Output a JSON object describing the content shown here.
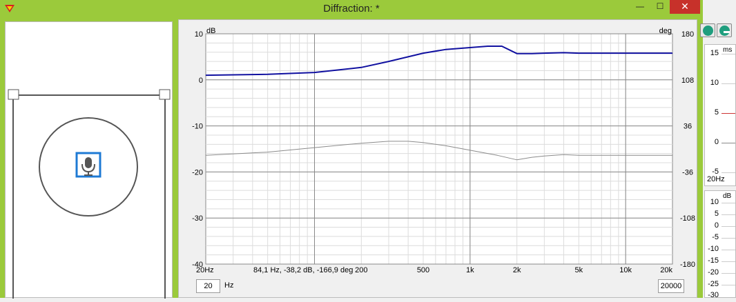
{
  "window": {
    "title": "Diffraction: *",
    "icons": {
      "app": "speaker-logo-icon",
      "minimize": "minimize-icon",
      "maximize": "maximize-icon",
      "close": "close-icon"
    },
    "min_glyph": "—",
    "max_glyph": "☐",
    "close_glyph": "✕"
  },
  "baffle": {
    "mic_icon": "microphone-icon",
    "selection_color": "#1e7ad4"
  },
  "plot": {
    "left_unit": "dB",
    "right_unit": "deg",
    "cursor_readout": "84,1 Hz, -38,2 dB, -166,9 deg",
    "freq_min_value": "20",
    "freq_unit": "Hz",
    "freq_max_value": "20000"
  },
  "chart_data": {
    "type": "line",
    "x_scale": "log",
    "xlim": [
      20,
      20000
    ],
    "x_ticks": [
      20,
      200,
      500,
      1000,
      2000,
      5000,
      10000,
      20000
    ],
    "x_tick_labels": [
      "20Hz",
      "200",
      "500",
      "1k",
      "2k",
      "5k",
      "10k",
      "20k"
    ],
    "ylim": [
      -40,
      10
    ],
    "y_ticks": [
      10,
      0,
      -10,
      -20,
      -30,
      -40
    ],
    "y_tick_labels": [
      "10",
      "0",
      "-10",
      "-20",
      "-30",
      "-40"
    ],
    "y2lim": [
      -180,
      180
    ],
    "y2_ticks": [
      180,
      108,
      36,
      -36,
      -108,
      -180
    ],
    "y2_tick_labels": [
      "180",
      "108",
      "36",
      "-36",
      "-108",
      "-180"
    ],
    "grid": true,
    "series": [
      {
        "color": "#1010a0",
        "axis": "left",
        "x": [
          20,
          50,
          100,
          200,
          300,
          500,
          700,
          1000,
          1300,
          1600,
          2000,
          2500,
          3000,
          4000,
          5000,
          7000,
          10000,
          20000
        ],
        "values": [
          1.0,
          1.2,
          1.6,
          2.7,
          4.0,
          5.8,
          6.6,
          7.0,
          7.3,
          7.3,
          5.7,
          5.7,
          5.8,
          5.9,
          5.8,
          5.8,
          5.8,
          5.8
        ]
      },
      {
        "color": "#8a8a8a",
        "axis": "right",
        "x": [
          20,
          50,
          100,
          200,
          300,
          400,
          500,
          700,
          1000,
          1500,
          2000,
          2500,
          3000,
          4000,
          5000,
          7000,
          10000,
          20000
        ],
        "values": [
          -10,
          -5,
          2,
          9,
          12,
          12,
          10,
          5,
          -2,
          -10,
          -17,
          -13,
          -11,
          -9,
          -10,
          -10,
          -10,
          -10
        ]
      }
    ]
  },
  "side_panel": {
    "add_icon": "add-icon",
    "remove_icon": "remove-icon",
    "top_unit": "ms",
    "top_ticks": [
      "15",
      "10",
      "5",
      "0",
      "-5"
    ],
    "top_freq_label": "20Hz",
    "marker_color": "#cc3333",
    "bottom_unit": "dB",
    "bottom_ticks": [
      "10",
      "5",
      "0",
      "-5",
      "-10",
      "-15",
      "-20",
      "-25",
      "-30"
    ]
  }
}
